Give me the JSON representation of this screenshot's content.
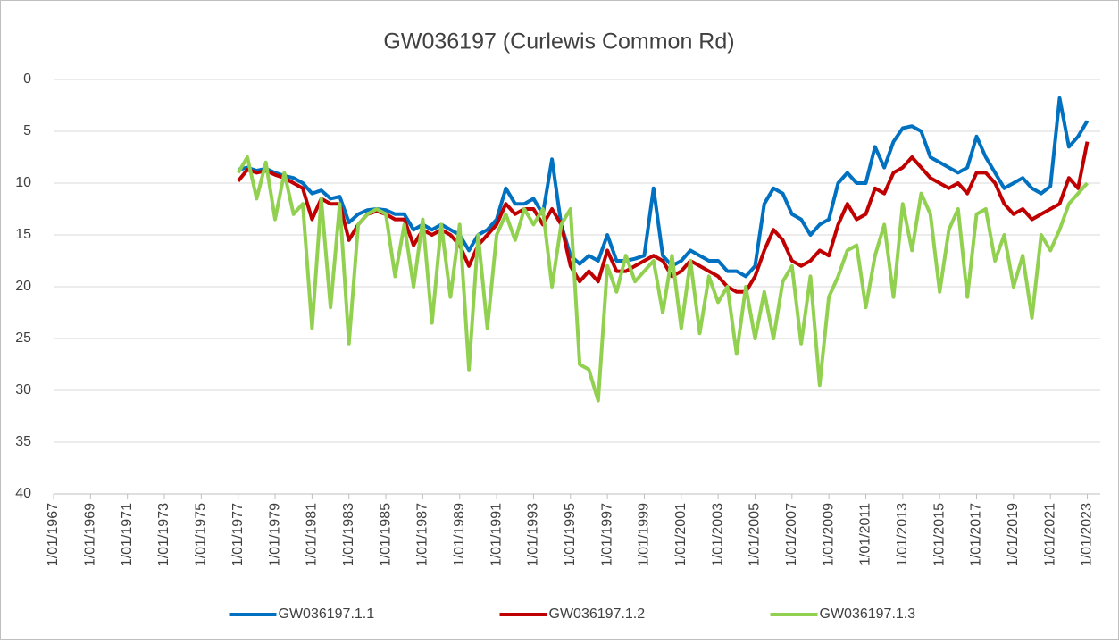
{
  "chart_data": {
    "type": "line",
    "title": "GW036197 (Curlewis Common Rd)",
    "x": [
      1977,
      1977.5,
      1978,
      1978.5,
      1979,
      1979.5,
      1980,
      1980.5,
      1981,
      1981.5,
      1982,
      1982.5,
      1983,
      1983.5,
      1984,
      1984.5,
      1985,
      1985.5,
      1986,
      1986.5,
      1987,
      1987.5,
      1988,
      1988.5,
      1989,
      1989.5,
      1990,
      1990.5,
      1991,
      1991.5,
      1992,
      1992.5,
      1993,
      1993.5,
      1994,
      1994.5,
      1995,
      1995.5,
      1996,
      1996.5,
      1997,
      1997.5,
      1998,
      1998.5,
      1999,
      1999.5,
      2000,
      2000.5,
      2001,
      2001.5,
      2002,
      2002.5,
      2003,
      2003.5,
      2004,
      2004.5,
      2005,
      2005.5,
      2006,
      2006.5,
      2007,
      2007.5,
      2008,
      2008.5,
      2009,
      2009.5,
      2010,
      2010.5,
      2011,
      2011.5,
      2012,
      2012.5,
      2013,
      2013.5,
      2014,
      2014.5,
      2015,
      2015.5,
      2016,
      2016.5,
      2017,
      2017.5,
      2018,
      2018.5,
      2019,
      2019.5,
      2020,
      2020.5,
      2021,
      2021.5,
      2022,
      2022.5,
      2023
    ],
    "series": [
      {
        "name": "GW036197.1.1",
        "color": "#0070c0",
        "values": [
          8.7,
          8.5,
          8.8,
          8.6,
          9,
          9.3,
          9.5,
          10,
          11,
          10.7,
          11.5,
          11.3,
          13.8,
          13,
          12.6,
          12.5,
          12.6,
          13,
          13,
          14.5,
          14,
          14.5,
          14,
          14.5,
          15,
          16.5,
          15,
          14.5,
          13.5,
          10.5,
          12,
          12,
          11.5,
          13,
          7.7,
          14,
          17,
          17.8,
          17,
          17.5,
          15,
          17.5,
          17.5,
          17.3,
          17,
          10.5,
          17,
          18,
          17.5,
          16.5,
          17,
          17.5,
          17.5,
          18.5,
          18.5,
          19,
          18,
          12,
          10.5,
          11,
          13,
          13.5,
          15,
          14,
          13.5,
          10,
          9,
          10,
          10,
          6.5,
          8.5,
          6,
          4.7,
          4.5,
          5,
          7.5,
          8,
          8.5,
          9,
          8.5,
          5.5,
          7.5,
          9,
          10.5,
          10,
          9.5,
          10.5,
          11,
          10.3,
          1.8,
          6.5,
          5.5,
          4
        ]
      },
      {
        "name": "GW036197.1.2",
        "color": "#c00000",
        "values": [
          9.8,
          8.7,
          9,
          8.8,
          9.2,
          9.5,
          10,
          10.5,
          13.5,
          11.5,
          12,
          12,
          15.5,
          14,
          13,
          12.7,
          13,
          13.5,
          13.5,
          16,
          14.5,
          15,
          14.5,
          15,
          16,
          18,
          16,
          15,
          14,
          12,
          13,
          12.5,
          12.5,
          14,
          12.5,
          14,
          18,
          19.5,
          18.5,
          19.5,
          16.5,
          18.5,
          18.5,
          18,
          17.5,
          17,
          17.5,
          19,
          18.5,
          17.5,
          18,
          18.5,
          19,
          20,
          20.5,
          20.5,
          19,
          16.5,
          14.5,
          15.5,
          17.5,
          18,
          17.5,
          16.5,
          17,
          14,
          12,
          13.5,
          13,
          10.5,
          11,
          9,
          8.5,
          7.5,
          8.5,
          9.5,
          10,
          10.5,
          10,
          11,
          9,
          9,
          10,
          12,
          13,
          12.5,
          13.5,
          13,
          12.5,
          12,
          9.5,
          10.5,
          6
        ]
      },
      {
        "name": "GW036197.1.3",
        "color": "#92d050",
        "values": [
          9,
          7.5,
          11.5,
          8,
          13.5,
          9,
          13,
          12,
          24,
          11.5,
          22,
          12,
          25.5,
          14,
          13,
          12.5,
          13,
          19,
          14,
          20,
          13.5,
          23.5,
          14,
          21,
          14,
          28,
          15,
          24,
          15,
          13,
          15.5,
          12.5,
          14,
          12.5,
          20,
          14,
          12.5,
          27.5,
          28,
          31,
          18,
          20.5,
          17,
          19.5,
          18.5,
          17.5,
          22.5,
          17,
          24,
          17.5,
          24.5,
          19,
          21.5,
          20,
          26.5,
          20,
          25,
          20.5,
          25,
          19.5,
          18,
          25.5,
          19,
          29.5,
          21,
          19,
          16.5,
          16,
          22,
          17,
          14,
          21,
          12,
          16.5,
          11,
          13,
          20.5,
          14.5,
          12.5,
          21,
          13,
          12.5,
          17.5,
          15,
          20,
          17,
          23,
          15,
          16.5,
          14.5,
          12,
          11,
          10
        ]
      }
    ],
    "xlim": [
      1967,
      2023.7
    ],
    "xticks": [
      {
        "value": 1967,
        "label": "1/01/1967"
      },
      {
        "value": 1969,
        "label": "1/01/1969"
      },
      {
        "value": 1971,
        "label": "1/01/1971"
      },
      {
        "value": 1973,
        "label": "1/01/1973"
      },
      {
        "value": 1975,
        "label": "1/01/1975"
      },
      {
        "value": 1977,
        "label": "1/01/1977"
      },
      {
        "value": 1979,
        "label": "1/01/1979"
      },
      {
        "value": 1981,
        "label": "1/01/1981"
      },
      {
        "value": 1983,
        "label": "1/01/1983"
      },
      {
        "value": 1985,
        "label": "1/01/1985"
      },
      {
        "value": 1987,
        "label": "1/01/1987"
      },
      {
        "value": 1989,
        "label": "1/01/1989"
      },
      {
        "value": 1991,
        "label": "1/01/1991"
      },
      {
        "value": 1993,
        "label": "1/01/1993"
      },
      {
        "value": 1995,
        "label": "1/01/1995"
      },
      {
        "value": 1997,
        "label": "1/01/1997"
      },
      {
        "value": 1999,
        "label": "1/01/1999"
      },
      {
        "value": 2001,
        "label": "1/01/2001"
      },
      {
        "value": 2003,
        "label": "1/01/2003"
      },
      {
        "value": 2005,
        "label": "1/01/2005"
      },
      {
        "value": 2007,
        "label": "1/01/2007"
      },
      {
        "value": 2009,
        "label": "1/01/2009"
      },
      {
        "value": 2011,
        "label": "1/01/2011"
      },
      {
        "value": 2013,
        "label": "1/01/2013"
      },
      {
        "value": 2015,
        "label": "1/01/2015"
      },
      {
        "value": 2017,
        "label": "1/01/2017"
      },
      {
        "value": 2019,
        "label": "1/01/2019"
      },
      {
        "value": 2021,
        "label": "1/01/2021"
      },
      {
        "value": 2023,
        "label": "1/01/2023"
      }
    ],
    "ylim": [
      0,
      40
    ],
    "yticks": [
      0,
      5,
      10,
      15,
      20,
      25,
      30,
      35,
      40
    ],
    "y_inverted": true,
    "grid": true,
    "legend": "bottom"
  }
}
